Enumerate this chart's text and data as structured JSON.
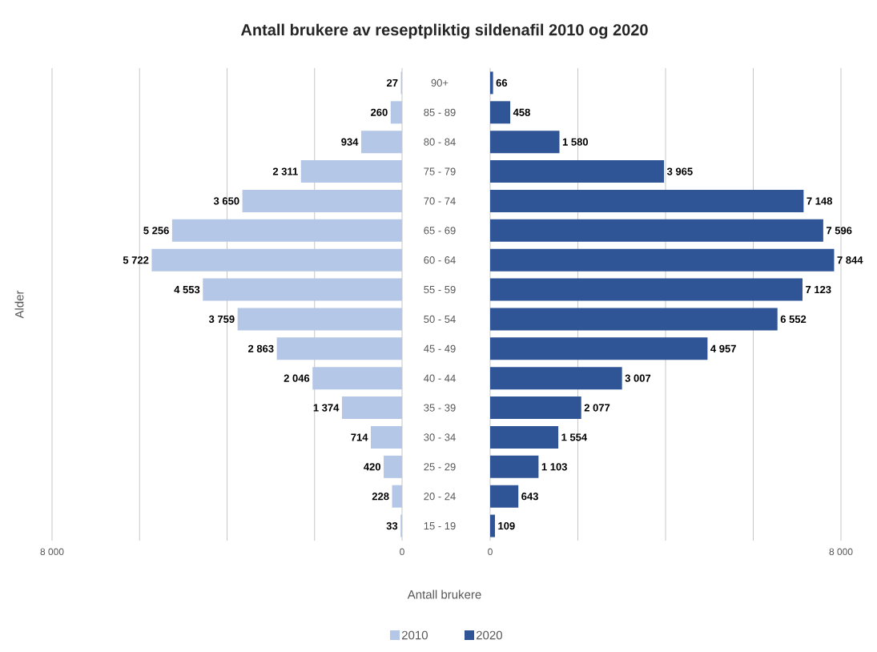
{
  "chart_data": [
    {
      "type": "bar",
      "orientation": "horizontal",
      "title": "Antall brukere av reseptpliktig sildenafil 2010 og 2020",
      "xlabel": "Antall brukere",
      "ylabel": "Alder",
      "categories": [
        "90+",
        "85 - 89",
        "80 - 84",
        "75 - 79",
        "70 - 74",
        "65 - 69",
        "60 - 64",
        "55 - 59",
        "50 - 54",
        "45 - 49",
        "40 - 44",
        "35 - 39",
        "30 - 34",
        "25 - 29",
        "20 - 24",
        "15 - 19"
      ],
      "series": [
        {
          "name": "2010",
          "color": "#b4c7e7",
          "values": [
            27,
            260,
            934,
            2311,
            3650,
            5256,
            5722,
            4553,
            3759,
            2863,
            2046,
            1374,
            714,
            420,
            228,
            33
          ]
        }
      ],
      "xlim": [
        8000,
        0
      ],
      "xticks": [
        {
          "value": 8000,
          "label": "8 000"
        },
        {
          "value": 6000,
          "label": null
        },
        {
          "value": 4000,
          "label": null
        },
        {
          "value": 2000,
          "label": null
        },
        0
      ],
      "grid": "x",
      "data_labels": true,
      "legend": "bottom"
    },
    {
      "type": "bar",
      "orientation": "horizontal",
      "series": [
        {
          "name": "2020",
          "color": "#2f5597",
          "values": [
            66,
            458,
            1580,
            3965,
            7148,
            7596,
            7844,
            7123,
            6552,
            4957,
            3007,
            2077,
            1554,
            1103,
            643,
            109
          ]
        }
      ],
      "xlim": [
        0,
        8000
      ],
      "xticks": [
        0,
        {
          "value": 2000,
          "label": null
        },
        {
          "value": 4000,
          "label": null
        },
        {
          "value": 6000,
          "label": null
        },
        {
          "value": 8000,
          "label": "8 000"
        }
      ],
      "grid": "x",
      "data_labels": true,
      "legend": "bottom",
      "tick_labels": "x"
    }
  ]
}
